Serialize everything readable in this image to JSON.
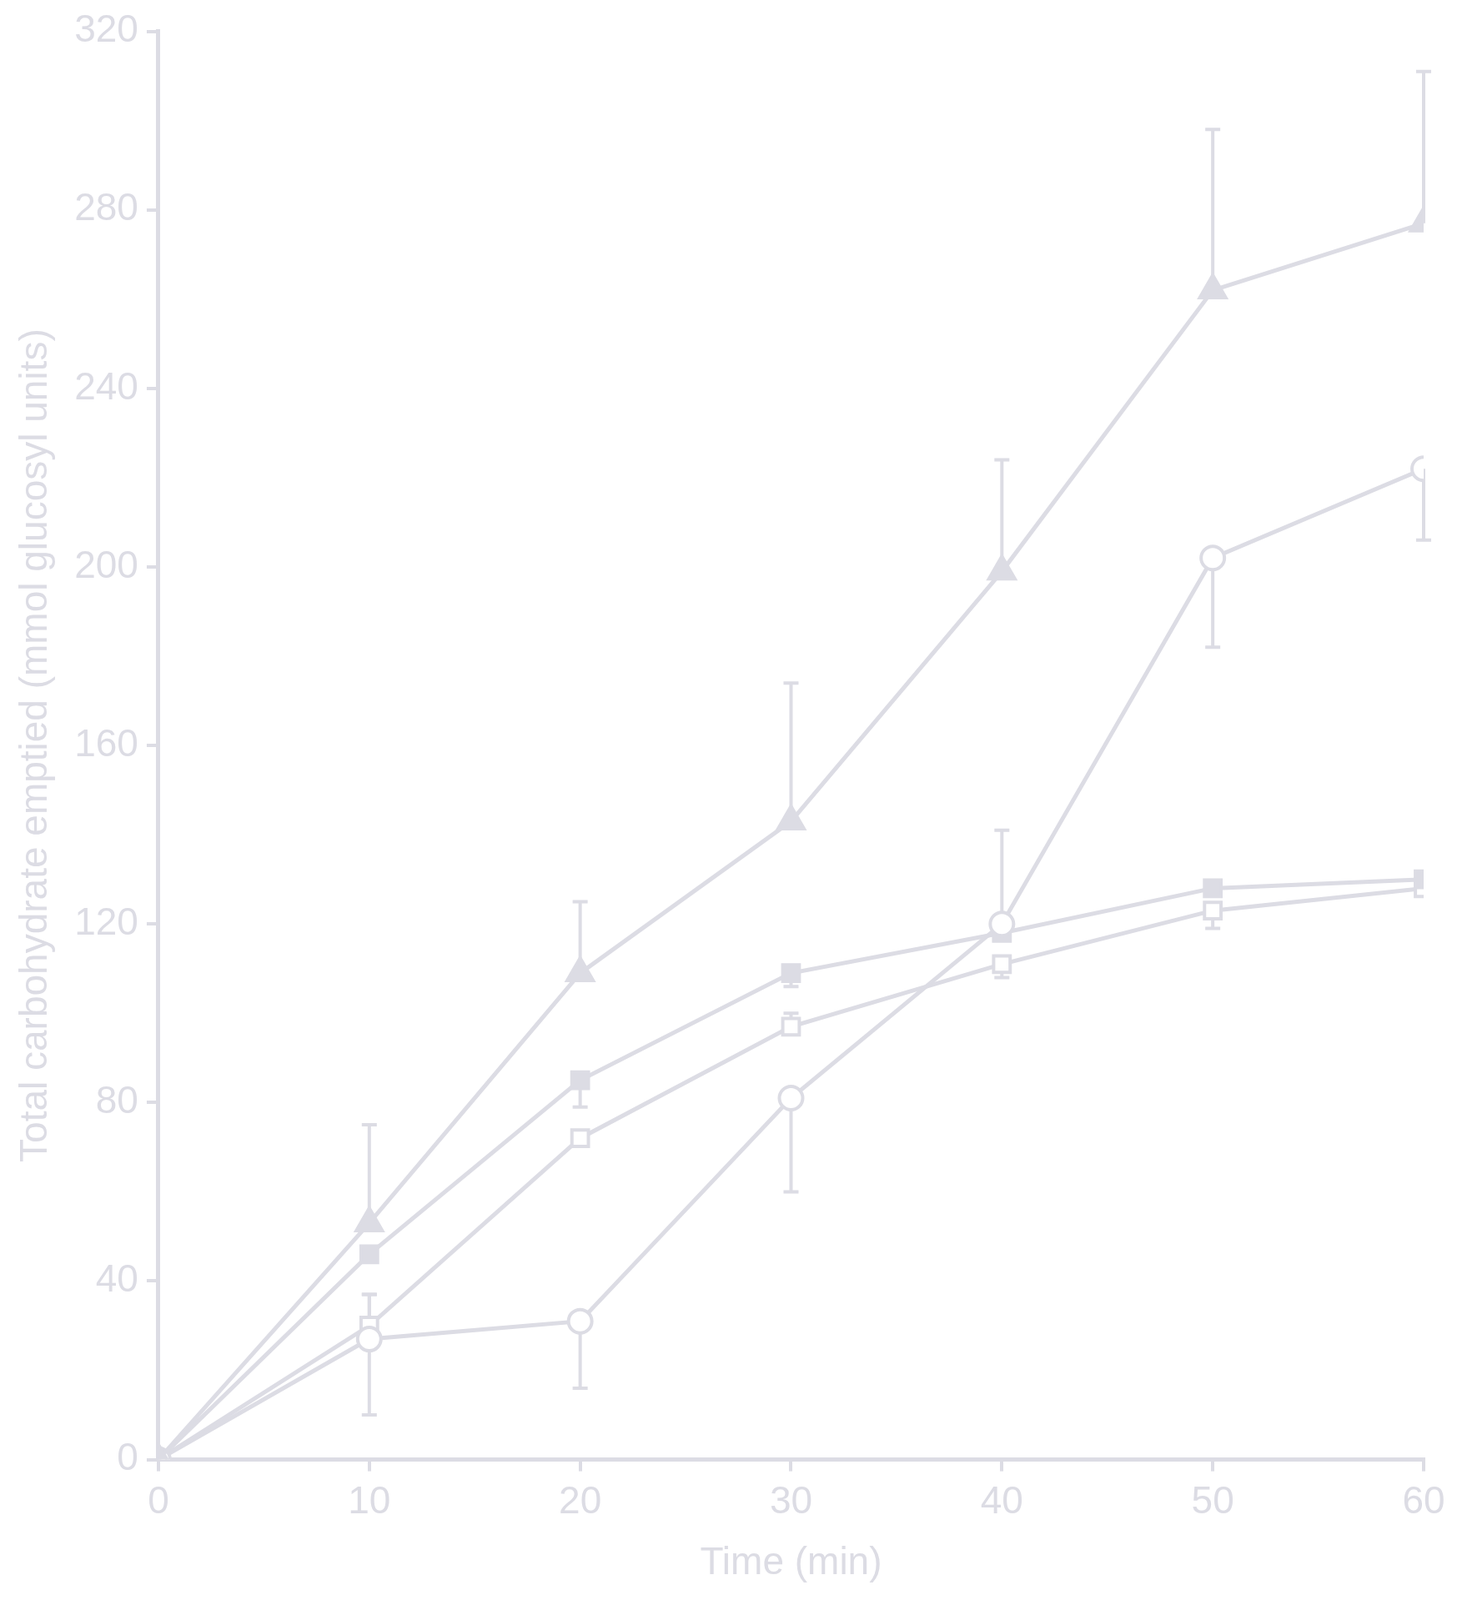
{
  "chart_data": {
    "type": "line",
    "x_label": "Time (min)",
    "y_label": "Total carbohydrate emptied (mmol glucosyl units)",
    "x": [
      0,
      10,
      20,
      30,
      40,
      50,
      60
    ],
    "xlim": [
      0,
      60
    ],
    "xticks": [
      0,
      10,
      20,
      30,
      40,
      50,
      60
    ],
    "ylim": [
      0,
      320
    ],
    "yticks": [
      0,
      40,
      80,
      120,
      160,
      200,
      240,
      280,
      320
    ],
    "grid": false,
    "series": [
      {
        "color": "#dcdce4",
        "marker": "triangle",
        "values": [
          0,
          53,
          109,
          143,
          199,
          262,
          277
        ],
        "errors_plus": [
          null,
          22,
          16,
          31,
          25,
          36,
          34
        ],
        "errors_minus": [
          null,
          null,
          null,
          null,
          null,
          null,
          null
        ]
      },
      {
        "color": "#dcdce4",
        "marker": "circle-open",
        "values": [
          0,
          27,
          31,
          81,
          120,
          202,
          222
        ],
        "errors_plus": [
          null,
          10,
          null,
          null,
          21,
          null,
          null
        ],
        "errors_minus": [
          null,
          17,
          15,
          21,
          null,
          20,
          16
        ]
      },
      {
        "color": "#dcdce4",
        "marker": "square",
        "values": [
          0,
          46,
          85,
          109,
          118,
          128,
          130
        ],
        "errors_plus": [
          null,
          null,
          null,
          null,
          null,
          null,
          null
        ],
        "errors_minus": [
          null,
          null,
          6,
          3,
          null,
          null,
          null
        ]
      },
      {
        "color": "#dcdce4",
        "marker": "square-open",
        "values": [
          0,
          30,
          72,
          97,
          111,
          123,
          128
        ],
        "errors_plus": [
          null,
          7,
          null,
          3,
          null,
          null,
          null
        ],
        "errors_minus": [
          null,
          null,
          null,
          null,
          3,
          4,
          null
        ]
      }
    ]
  }
}
